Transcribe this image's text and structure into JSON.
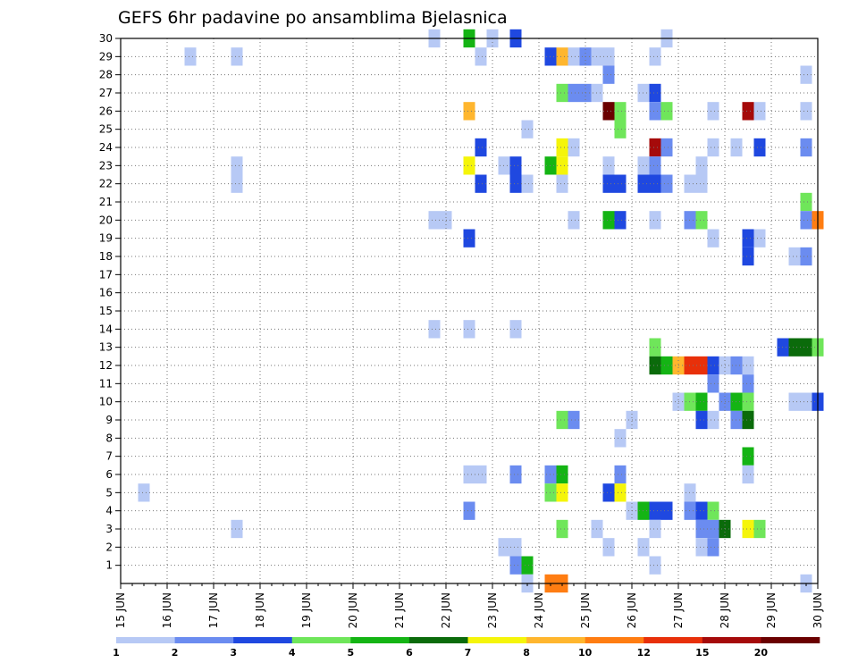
{
  "chart_data": {
    "type": "heatmap",
    "title": "GEFS 6hr padavine po ansamblima Bjelasnica",
    "x_tick_labels": [
      "15 JUN",
      "16 JUN",
      "17 JUN",
      "18 JUN",
      "19 JUN",
      "20 JUN",
      "21 JUN",
      "22 JUN",
      "23 JUN",
      "24 JUN",
      "25 JUN",
      "26 JUN",
      "27 JUN",
      "28 JUN",
      "29 JUN",
      "30 JUN"
    ],
    "y_tick_labels": [
      "1",
      "2",
      "3",
      "4",
      "5",
      "6",
      "7",
      "8",
      "9",
      "10",
      "11",
      "12",
      "13",
      "14",
      "15",
      "16",
      "17",
      "18",
      "19",
      "20",
      "21",
      "22",
      "23",
      "24",
      "25",
      "26",
      "27",
      "28",
      "29",
      "30"
    ],
    "xlim_steps": [
      0,
      60
    ],
    "ylim": [
      0,
      30
    ],
    "steps_per_day": 4,
    "grid": true,
    "colorbar": {
      "levels": [
        "1",
        "2",
        "3",
        "4",
        "5",
        "6",
        "7",
        "8",
        "10",
        "12",
        "15",
        "20"
      ],
      "colors": [
        "#b7c9f5",
        "#6b8cf0",
        "#1f48e0",
        "#6fe65a",
        "#14b414",
        "#0b6b0b",
        "#f5f50a",
        "#ffb62e",
        "#ff7d12",
        "#e8300a",
        "#a50a0a",
        "#6a0000"
      ]
    },
    "cells": [
      {
        "m": 30,
        "s": 27,
        "c": 0
      },
      {
        "m": 30,
        "s": 30,
        "c": 4
      },
      {
        "m": 30,
        "s": 32,
        "c": 0
      },
      {
        "m": 30,
        "s": 34,
        "c": 2
      },
      {
        "m": 30,
        "s": 47,
        "c": 0
      },
      {
        "m": 29,
        "s": 6,
        "c": 0
      },
      {
        "m": 29,
        "s": 10,
        "c": 0
      },
      {
        "m": 29,
        "s": 31,
        "c": 0
      },
      {
        "m": 29,
        "s": 37,
        "c": 2
      },
      {
        "m": 29,
        "s": 38,
        "c": 7
      },
      {
        "m": 29,
        "s": 39,
        "c": 0
      },
      {
        "m": 29,
        "s": 40,
        "c": 1
      },
      {
        "m": 29,
        "s": 41,
        "c": 0
      },
      {
        "m": 29,
        "s": 42,
        "c": 0
      },
      {
        "m": 29,
        "s": 46,
        "c": 0
      },
      {
        "m": 28,
        "s": 42,
        "c": 1
      },
      {
        "m": 28,
        "s": 59,
        "c": 0
      },
      {
        "m": 27,
        "s": 38,
        "c": 3
      },
      {
        "m": 27,
        "s": 39,
        "c": 1
      },
      {
        "m": 27,
        "s": 40,
        "c": 1
      },
      {
        "m": 27,
        "s": 41,
        "c": 0
      },
      {
        "m": 27,
        "s": 45,
        "c": 0
      },
      {
        "m": 27,
        "s": 46,
        "c": 2
      },
      {
        "m": 26,
        "s": 30,
        "c": 7
      },
      {
        "m": 26,
        "s": 42,
        "c": 11
      },
      {
        "m": 26,
        "s": 43,
        "c": 3
      },
      {
        "m": 26,
        "s": 46,
        "c": 1
      },
      {
        "m": 26,
        "s": 47,
        "c": 3
      },
      {
        "m": 26,
        "s": 51,
        "c": 0
      },
      {
        "m": 26,
        "s": 54,
        "c": 10
      },
      {
        "m": 26,
        "s": 55,
        "c": 0
      },
      {
        "m": 26,
        "s": 59,
        "c": 0
      },
      {
        "m": 25,
        "s": 35,
        "c": 0
      },
      {
        "m": 25,
        "s": 43,
        "c": 3
      },
      {
        "m": 24,
        "s": 31,
        "c": 2
      },
      {
        "m": 24,
        "s": 38,
        "c": 6
      },
      {
        "m": 24,
        "s": 39,
        "c": 0
      },
      {
        "m": 24,
        "s": 46,
        "c": 10
      },
      {
        "m": 24,
        "s": 47,
        "c": 1
      },
      {
        "m": 24,
        "s": 51,
        "c": 0
      },
      {
        "m": 24,
        "s": 53,
        "c": 0
      },
      {
        "m": 24,
        "s": 55,
        "c": 2
      },
      {
        "m": 24,
        "s": 59,
        "c": 1
      },
      {
        "m": 23,
        "s": 10,
        "c": 0
      },
      {
        "m": 23,
        "s": 30,
        "c": 6
      },
      {
        "m": 23,
        "s": 33,
        "c": 0
      },
      {
        "m": 23,
        "s": 34,
        "c": 2
      },
      {
        "m": 23,
        "s": 37,
        "c": 4
      },
      {
        "m": 23,
        "s": 38,
        "c": 6
      },
      {
        "m": 23,
        "s": 42,
        "c": 0
      },
      {
        "m": 23,
        "s": 45,
        "c": 0
      },
      {
        "m": 23,
        "s": 46,
        "c": 1
      },
      {
        "m": 23,
        "s": 50,
        "c": 0
      },
      {
        "m": 22,
        "s": 10,
        "c": 0
      },
      {
        "m": 22,
        "s": 31,
        "c": 2
      },
      {
        "m": 22,
        "s": 34,
        "c": 2
      },
      {
        "m": 22,
        "s": 35,
        "c": 0
      },
      {
        "m": 22,
        "s": 38,
        "c": 0
      },
      {
        "m": 22,
        "s": 42,
        "c": 2
      },
      {
        "m": 22,
        "s": 43,
        "c": 2
      },
      {
        "m": 22,
        "s": 45,
        "c": 2
      },
      {
        "m": 22,
        "s": 46,
        "c": 2
      },
      {
        "m": 22,
        "s": 47,
        "c": 1
      },
      {
        "m": 22,
        "s": 49,
        "c": 0
      },
      {
        "m": 22,
        "s": 50,
        "c": 0
      },
      {
        "m": 21,
        "s": 59,
        "c": 3
      },
      {
        "m": 20,
        "s": 27,
        "c": 0
      },
      {
        "m": 20,
        "s": 28,
        "c": 0
      },
      {
        "m": 20,
        "s": 39,
        "c": 0
      },
      {
        "m": 20,
        "s": 42,
        "c": 4
      },
      {
        "m": 20,
        "s": 43,
        "c": 2
      },
      {
        "m": 20,
        "s": 46,
        "c": 0
      },
      {
        "m": 20,
        "s": 49,
        "c": 1
      },
      {
        "m": 20,
        "s": 50,
        "c": 3
      },
      {
        "m": 20,
        "s": 59,
        "c": 1
      },
      {
        "m": 20,
        "s": 60,
        "c": 8
      },
      {
        "m": 19,
        "s": 30,
        "c": 2
      },
      {
        "m": 19,
        "s": 51,
        "c": 0
      },
      {
        "m": 19,
        "s": 54,
        "c": 2
      },
      {
        "m": 19,
        "s": 55,
        "c": 0
      },
      {
        "m": 18,
        "s": 54,
        "c": 2
      },
      {
        "m": 18,
        "s": 58,
        "c": 0
      },
      {
        "m": 18,
        "s": 59,
        "c": 1
      },
      {
        "m": 14,
        "s": 27,
        "c": 0
      },
      {
        "m": 14,
        "s": 30,
        "c": 0
      },
      {
        "m": 14,
        "s": 34,
        "c": 0
      },
      {
        "m": 13,
        "s": 46,
        "c": 3
      },
      {
        "m": 13,
        "s": 57,
        "c": 2
      },
      {
        "m": 13,
        "s": 58,
        "c": 5
      },
      {
        "m": 13,
        "s": 59,
        "c": 5
      },
      {
        "m": 13,
        "s": 60,
        "c": 3
      },
      {
        "m": 12,
        "s": 46,
        "c": 5
      },
      {
        "m": 12,
        "s": 47,
        "c": 4
      },
      {
        "m": 12,
        "s": 48,
        "c": 7
      },
      {
        "m": 12,
        "s": 49,
        "c": 9
      },
      {
        "m": 12,
        "s": 50,
        "c": 9
      },
      {
        "m": 12,
        "s": 51,
        "c": 2
      },
      {
        "m": 12,
        "s": 52,
        "c": 0
      },
      {
        "m": 12,
        "s": 53,
        "c": 1
      },
      {
        "m": 12,
        "s": 54,
        "c": 0
      },
      {
        "m": 11,
        "s": 51,
        "c": 1
      },
      {
        "m": 11,
        "s": 54,
        "c": 1
      },
      {
        "m": 10,
        "s": 48,
        "c": 0
      },
      {
        "m": 10,
        "s": 49,
        "c": 3
      },
      {
        "m": 10,
        "s": 50,
        "c": 4
      },
      {
        "m": 10,
        "s": 52,
        "c": 1
      },
      {
        "m": 10,
        "s": 53,
        "c": 4
      },
      {
        "m": 10,
        "s": 54,
        "c": 3
      },
      {
        "m": 10,
        "s": 58,
        "c": 0
      },
      {
        "m": 10,
        "s": 59,
        "c": 0
      },
      {
        "m": 10,
        "s": 60,
        "c": 2
      },
      {
        "m": 9,
        "s": 38,
        "c": 3
      },
      {
        "m": 9,
        "s": 39,
        "c": 1
      },
      {
        "m": 9,
        "s": 44,
        "c": 0
      },
      {
        "m": 9,
        "s": 50,
        "c": 2
      },
      {
        "m": 9,
        "s": 51,
        "c": 0
      },
      {
        "m": 9,
        "s": 53,
        "c": 1
      },
      {
        "m": 9,
        "s": 54,
        "c": 5
      },
      {
        "m": 8,
        "s": 43,
        "c": 0
      },
      {
        "m": 7,
        "s": 54,
        "c": 4
      },
      {
        "m": 6,
        "s": 30,
        "c": 0
      },
      {
        "m": 6,
        "s": 31,
        "c": 0
      },
      {
        "m": 6,
        "s": 34,
        "c": 1
      },
      {
        "m": 6,
        "s": 37,
        "c": 1
      },
      {
        "m": 6,
        "s": 38,
        "c": 4
      },
      {
        "m": 6,
        "s": 43,
        "c": 1
      },
      {
        "m": 6,
        "s": 54,
        "c": 0
      },
      {
        "m": 5,
        "s": 2,
        "c": 0
      },
      {
        "m": 5,
        "s": 37,
        "c": 3
      },
      {
        "m": 5,
        "s": 38,
        "c": 6
      },
      {
        "m": 5,
        "s": 42,
        "c": 2
      },
      {
        "m": 5,
        "s": 43,
        "c": 6
      },
      {
        "m": 5,
        "s": 49,
        "c": 0
      },
      {
        "m": 4,
        "s": 30,
        "c": 1
      },
      {
        "m": 4,
        "s": 44,
        "c": 0
      },
      {
        "m": 4,
        "s": 45,
        "c": 4
      },
      {
        "m": 4,
        "s": 46,
        "c": 2
      },
      {
        "m": 4,
        "s": 47,
        "c": 2
      },
      {
        "m": 4,
        "s": 49,
        "c": 1
      },
      {
        "m": 4,
        "s": 50,
        "c": 2
      },
      {
        "m": 4,
        "s": 51,
        "c": 3
      },
      {
        "m": 3,
        "s": 10,
        "c": 0
      },
      {
        "m": 3,
        "s": 38,
        "c": 3
      },
      {
        "m": 3,
        "s": 41,
        "c": 0
      },
      {
        "m": 3,
        "s": 46,
        "c": 0
      },
      {
        "m": 3,
        "s": 50,
        "c": 1
      },
      {
        "m": 3,
        "s": 51,
        "c": 1
      },
      {
        "m": 3,
        "s": 52,
        "c": 5
      },
      {
        "m": 3,
        "s": 54,
        "c": 6
      },
      {
        "m": 3,
        "s": 55,
        "c": 3
      },
      {
        "m": 2,
        "s": 33,
        "c": 0
      },
      {
        "m": 2,
        "s": 34,
        "c": 0
      },
      {
        "m": 2,
        "s": 42,
        "c": 0
      },
      {
        "m": 2,
        "s": 45,
        "c": 0
      },
      {
        "m": 2,
        "s": 50,
        "c": 0
      },
      {
        "m": 2,
        "s": 51,
        "c": 1
      },
      {
        "m": 1,
        "s": 34,
        "c": 1
      },
      {
        "m": 1,
        "s": 35,
        "c": 4
      },
      {
        "m": 1,
        "s": 46,
        "c": 0
      },
      {
        "m": 0,
        "s": 35,
        "c": 0
      },
      {
        "m": 0,
        "s": 37,
        "c": 8
      },
      {
        "m": 0,
        "s": 38,
        "c": 8
      },
      {
        "m": 0,
        "s": 59,
        "c": 0
      }
    ]
  }
}
